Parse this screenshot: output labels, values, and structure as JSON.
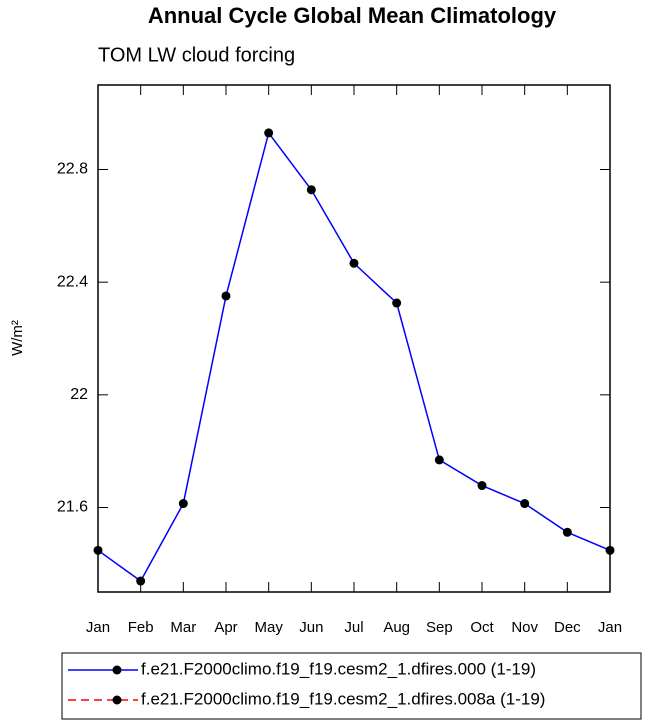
{
  "chart_data": {
    "type": "line",
    "title": "Annual Cycle Global Mean Climatology",
    "subtitle": "TOM LW cloud forcing",
    "y_label": "W/m²",
    "categories": [
      "Jan",
      "Feb",
      "Mar",
      "Apr",
      "May",
      "Jun",
      "Jul",
      "Aug",
      "Sep",
      "Oct",
      "Nov",
      "Dec",
      "Jan"
    ],
    "series": [
      {
        "name": "f.e21.F2000climo.f19_f19.cesm2_1.dfires.000 (1-19)",
        "color": "#0000ff",
        "dash": "solid",
        "values": [
          21.448,
          21.339,
          21.614,
          22.351,
          22.93,
          22.728,
          22.467,
          22.326,
          21.769,
          21.678,
          21.614,
          21.512,
          21.448
        ]
      },
      {
        "name": "f.e21.F2000climo.f19_f19.cesm2_1.dfires.008a (1-19)",
        "color": "#ff0000",
        "dash": "dashed",
        "values": [
          null,
          null,
          null,
          null,
          null,
          null,
          null,
          null,
          null,
          null,
          null,
          null,
          null
        ]
      }
    ],
    "ylim": [
      21.3,
      23.1
    ],
    "yticks": [
      21.6,
      22.0,
      22.4,
      22.8
    ],
    "grid": false
  }
}
